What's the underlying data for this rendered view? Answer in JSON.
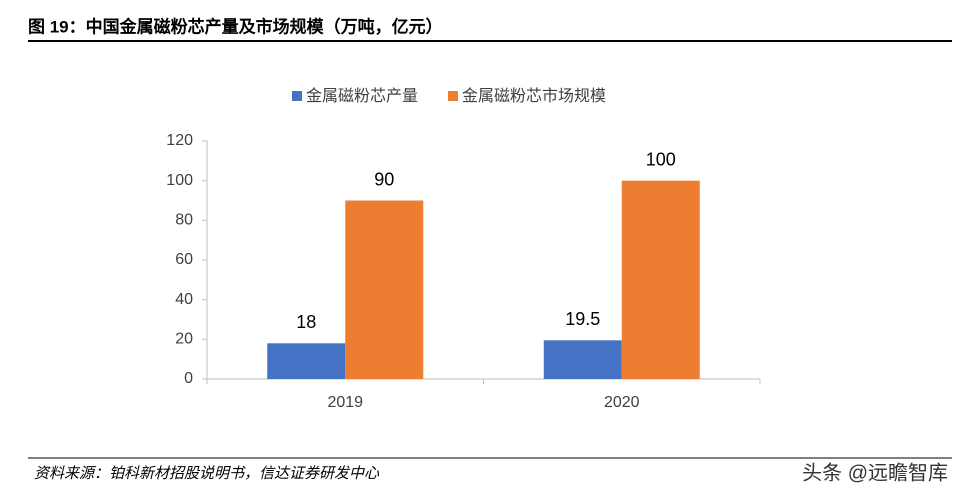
{
  "chart_data": {
    "type": "bar",
    "title": "图 19：中国金属磁粉芯产量及市场规模（万吨，亿元）",
    "source": "资料来源：铂科新材招股说明书，信达证券研发中心",
    "watermark": "头条 @远瞻智库",
    "categories": [
      "2019",
      "2020"
    ],
    "series": [
      {
        "name": "金属磁粉芯产量",
        "color": "#4472c4",
        "values": [
          18,
          19.5
        ]
      },
      {
        "name": "金属磁粉芯市场规模",
        "color": "#ed7d31",
        "values": [
          90,
          100
        ]
      }
    ],
    "ylim": [
      0,
      120
    ],
    "yticks": [
      0,
      20,
      40,
      60,
      80,
      100,
      120
    ],
    "grid": false,
    "legend": "top"
  }
}
